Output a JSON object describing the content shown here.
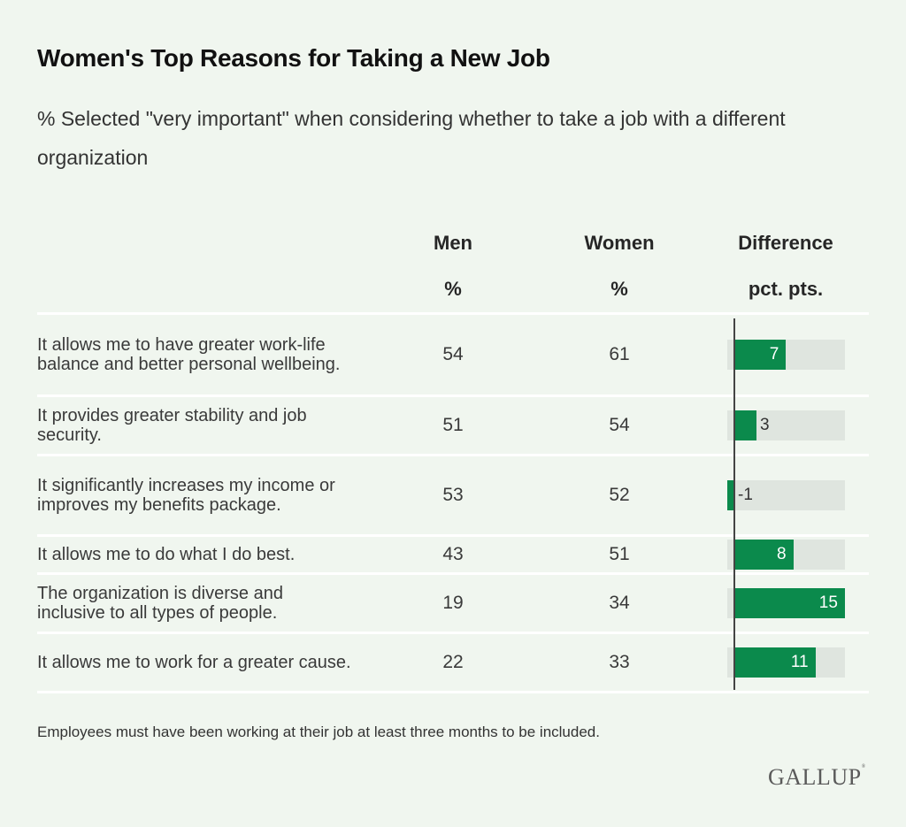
{
  "title": "Women's Top Reasons for Taking a New Job",
  "subtitle": "% Selected \"very important\" when considering whether to take a job with a different organization",
  "columns": {
    "men": {
      "header": "Men",
      "unit": "%"
    },
    "women": {
      "header": "Women",
      "unit": "%"
    },
    "difference": {
      "header": "Difference",
      "unit": "pct. pts."
    }
  },
  "colors": {
    "bar": "#0b8a4c",
    "bar_background": "#dfe5df",
    "background": "#f0f6ef"
  },
  "note": "Employees must have been working at their job at least three months to be included.",
  "logo": "GALLUP",
  "chart_data": {
    "type": "table",
    "title": "Women's Top Reasons for Taking a New Job",
    "subtitle": "% Selected \"very important\" when considering whether to take a job with a different organization",
    "columns": [
      "Men %",
      "Women %",
      "Difference pct. pts."
    ],
    "difference_axis_range": [
      -1,
      15
    ],
    "rows": [
      {
        "label": "It allows me to have greater work-life balance and better personal wellbeing.",
        "men": 54,
        "women": 61,
        "difference": 7
      },
      {
        "label": "It provides greater stability and job security.",
        "men": 51,
        "women": 54,
        "difference": 3
      },
      {
        "label": "It significantly increases my income or improves my benefits package.",
        "men": 53,
        "women": 52,
        "difference": -1
      },
      {
        "label": "It allows me to do what I do best.",
        "men": 43,
        "women": 51,
        "difference": 8
      },
      {
        "label": "The organization is diverse and inclusive to all types of people.",
        "men": 19,
        "women": 34,
        "difference": 15
      },
      {
        "label": "It allows me to work for a greater cause.",
        "men": 22,
        "women": 33,
        "difference": 11
      }
    ],
    "footnote": "Employees must have been working at their job at least three months to be included."
  }
}
